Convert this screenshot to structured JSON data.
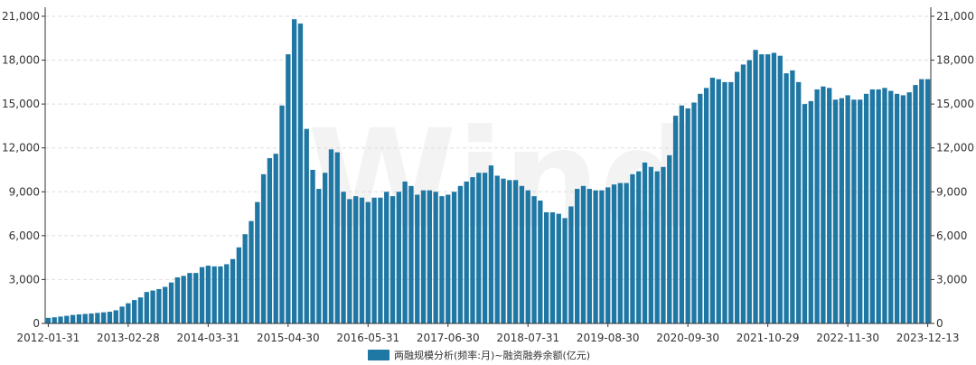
{
  "watermark": "Wind",
  "chart_data": {
    "type": "bar",
    "legend": {
      "label": "两融规模分析(频率:月)~融资融券余额(亿元)",
      "position": "bottom"
    },
    "series_color": "#1f77a4",
    "grid": true,
    "ylim": [
      0,
      21000
    ],
    "yticks": [
      0,
      3000,
      6000,
      9000,
      12000,
      15000,
      18000,
      21000
    ],
    "ytick_labels": [
      "0",
      "3,000",
      "6,000",
      "9,000",
      "12,000",
      "15,000",
      "18,000",
      "21,000"
    ],
    "xtick_labels": [
      {
        "index": 0,
        "label": "2012-01-31"
      },
      {
        "index": 13,
        "label": "2013-02-28"
      },
      {
        "index": 26,
        "label": "2014-03-31"
      },
      {
        "index": 39,
        "label": "2015-04-30"
      },
      {
        "index": 52,
        "label": "2016-05-31"
      },
      {
        "index": 65,
        "label": "2017-06-30"
      },
      {
        "index": 78,
        "label": "2018-07-31"
      },
      {
        "index": 91,
        "label": "2019-08-30"
      },
      {
        "index": 104,
        "label": "2020-09-30"
      },
      {
        "index": 117,
        "label": "2021-10-29"
      },
      {
        "index": 130,
        "label": "2022-11-30"
      },
      {
        "index": 143,
        "label": "2023-12-13"
      }
    ],
    "values": [
      380,
      420,
      470,
      520,
      580,
      620,
      650,
      680,
      720,
      760,
      800,
      900,
      1150,
      1380,
      1600,
      1780,
      2150,
      2250,
      2350,
      2500,
      2800,
      3150,
      3250,
      3450,
      3450,
      3850,
      3950,
      3900,
      3900,
      4050,
      4400,
      5200,
      6100,
      7000,
      8300,
      10200,
      11300,
      11600,
      14900,
      18400,
      20800,
      20500,
      13300,
      10500,
      9200,
      10300,
      11900,
      11700,
      9000,
      8500,
      8700,
      8600,
      8300,
      8600,
      8600,
      9000,
      8700,
      9000,
      9700,
      9400,
      8800,
      9100,
      9100,
      9000,
      8700,
      8800,
      9000,
      9400,
      9700,
      10000,
      10300,
      10300,
      10800,
      10100,
      9900,
      9800,
      9800,
      9400,
      9100,
      8700,
      8400,
      7600,
      7600,
      7500,
      7200,
      8000,
      9200,
      9400,
      9200,
      9100,
      9100,
      9300,
      9500,
      9600,
      9600,
      10200,
      10400,
      11000,
      10700,
      10400,
      10700,
      11500,
      14200,
      14900,
      14700,
      15100,
      15700,
      16100,
      16800,
      16700,
      16500,
      16500,
      17200,
      17700,
      18000,
      18700,
      18400,
      18400,
      18500,
      18300,
      17100,
      17300,
      16500,
      15000,
      15200,
      16000,
      16200,
      16100,
      15300,
      15400,
      15600,
      15300,
      15300,
      15700,
      16000,
      16000,
      16100,
      15900,
      15700,
      15600,
      15800,
      16300,
      16700,
      16700
    ]
  }
}
